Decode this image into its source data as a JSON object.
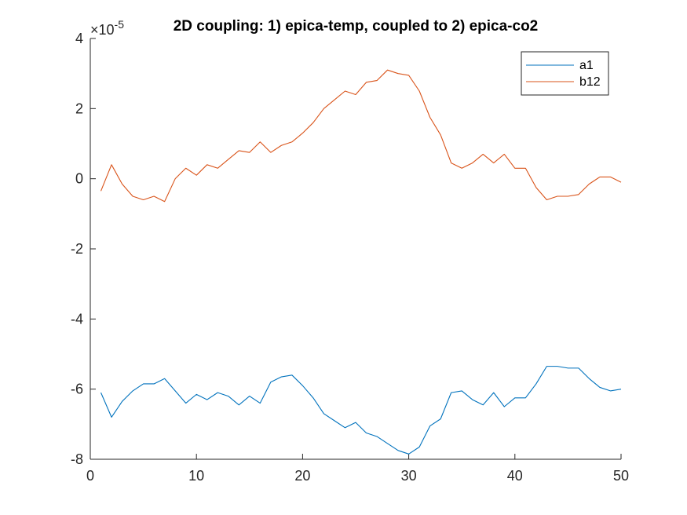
{
  "chart_data": {
    "type": "line",
    "title": "2D coupling: 1) epica-temp, coupled to 2) epica-co2",
    "y_multiplier": {
      "base": "×10",
      "exponent": "-5"
    },
    "xlabel": "",
    "ylabel": "",
    "xlim": [
      0,
      50
    ],
    "ylim": [
      -8,
      4
    ],
    "x_ticks": [
      0,
      10,
      20,
      30,
      40,
      50
    ],
    "y_ticks": [
      -8,
      -6,
      -4,
      -2,
      0,
      2,
      4
    ],
    "grid": false,
    "legend_position": "top-right",
    "x": [
      1,
      2,
      3,
      4,
      5,
      6,
      7,
      8,
      9,
      10,
      11,
      12,
      13,
      14,
      15,
      16,
      17,
      18,
      19,
      20,
      21,
      22,
      23,
      24,
      25,
      26,
      27,
      28,
      29,
      30,
      31,
      32,
      33,
      34,
      35,
      36,
      37,
      38,
      39,
      40,
      41,
      42,
      43,
      44,
      45,
      46,
      47,
      48,
      49,
      50
    ],
    "series": [
      {
        "name": "a1",
        "color": "#0072BD",
        "values": [
          -6.1,
          -6.8,
          -6.35,
          -6.05,
          -5.85,
          -5.85,
          -5.7,
          -6.05,
          -6.4,
          -6.15,
          -6.3,
          -6.1,
          -6.2,
          -6.45,
          -6.2,
          -6.4,
          -5.8,
          -5.65,
          -5.6,
          -5.9,
          -6.25,
          -6.7,
          -6.9,
          -7.1,
          -6.95,
          -7.25,
          -7.35,
          -7.55,
          -7.75,
          -7.85,
          -7.65,
          -7.05,
          -6.85,
          -6.1,
          -6.05,
          -6.3,
          -6.45,
          -6.1,
          -6.5,
          -6.25,
          -6.25,
          -5.85,
          -5.35,
          -5.35,
          -5.4,
          -5.4,
          -5.7,
          -5.95,
          -6.05,
          -6.0
        ]
      },
      {
        "name": "b12",
        "color": "#D95319",
        "values": [
          -0.35,
          0.4,
          -0.15,
          -0.5,
          -0.6,
          -0.5,
          -0.65,
          0.0,
          0.3,
          0.1,
          0.4,
          0.3,
          0.55,
          0.8,
          0.75,
          1.05,
          0.75,
          0.95,
          1.05,
          1.3,
          1.6,
          2.0,
          2.25,
          2.5,
          2.4,
          2.75,
          2.8,
          3.1,
          3.0,
          2.95,
          2.5,
          1.75,
          1.25,
          0.45,
          0.3,
          0.45,
          0.7,
          0.45,
          0.7,
          0.3,
          0.3,
          -0.25,
          -0.6,
          -0.5,
          -0.5,
          -0.45,
          -0.15,
          0.05,
          0.05,
          -0.1
        ]
      }
    ]
  }
}
